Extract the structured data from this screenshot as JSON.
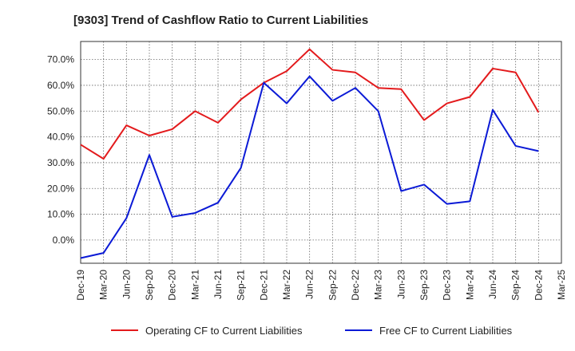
{
  "chart_data": {
    "type": "line",
    "title": "[9303]  Trend of Cashflow Ratio to Current Liabilities",
    "xlabel": "",
    "ylabel": "",
    "ylim": [
      -9,
      77
    ],
    "yticks": [
      0,
      10,
      20,
      30,
      40,
      50,
      60,
      70
    ],
    "ytick_labels": [
      "0.0%",
      "10.0%",
      "20.0%",
      "30.0%",
      "40.0%",
      "50.0%",
      "60.0%",
      "70.0%"
    ],
    "x_tick_labels": [
      "Dec-19",
      "Mar-20",
      "Jun-20",
      "Sep-20",
      "Dec-20",
      "Mar-21",
      "Jun-21",
      "Sep-21",
      "Dec-21",
      "Mar-22",
      "Jun-22",
      "Sep-22",
      "Dec-22",
      "Mar-23",
      "Jun-23",
      "Sep-23",
      "Dec-23",
      "Mar-24",
      "Jun-24",
      "Sep-24",
      "Dec-24",
      "Mar-25"
    ],
    "grid": true,
    "legend_position": "bottom",
    "series": [
      {
        "name": "Operating CF to Current Liabilities",
        "color": "#e31a1c",
        "x": [
          "Dec-19",
          "Mar-20",
          "Jun-20",
          "Sep-20",
          "Dec-20",
          "Mar-21",
          "Jun-21",
          "Sep-21",
          "Dec-21",
          "Mar-22",
          "Jun-22",
          "Sep-22",
          "Dec-22",
          "Mar-23",
          "Jun-23",
          "Sep-23",
          "Dec-23",
          "Mar-24",
          "Jun-24",
          "Sep-24",
          "Dec-24"
        ],
        "values": [
          37.0,
          31.5,
          44.5,
          40.5,
          43.0,
          50.0,
          45.5,
          54.5,
          61.0,
          65.5,
          74.0,
          66.0,
          65.0,
          59.0,
          58.5,
          46.5,
          53.0,
          55.5,
          66.5,
          65.0,
          49.5
        ]
      },
      {
        "name": "Free CF to Current Liabilities",
        "color": "#0b1ad6",
        "x": [
          "Dec-19",
          "Mar-20",
          "Jun-20",
          "Sep-20",
          "Dec-20",
          "Mar-21",
          "Jun-21",
          "Sep-21",
          "Dec-21",
          "Mar-22",
          "Jun-22",
          "Sep-22",
          "Dec-22",
          "Mar-23",
          "Jun-23",
          "Sep-23",
          "Dec-23",
          "Mar-24",
          "Jun-24",
          "Sep-24",
          "Dec-24"
        ],
        "values": [
          -7.0,
          -5.0,
          8.5,
          33.0,
          9.0,
          10.5,
          14.5,
          28.0,
          61.0,
          53.0,
          63.5,
          54.0,
          59.0,
          50.0,
          19.0,
          21.5,
          14.0,
          15.0,
          50.5,
          36.5,
          34.5
        ]
      }
    ]
  }
}
